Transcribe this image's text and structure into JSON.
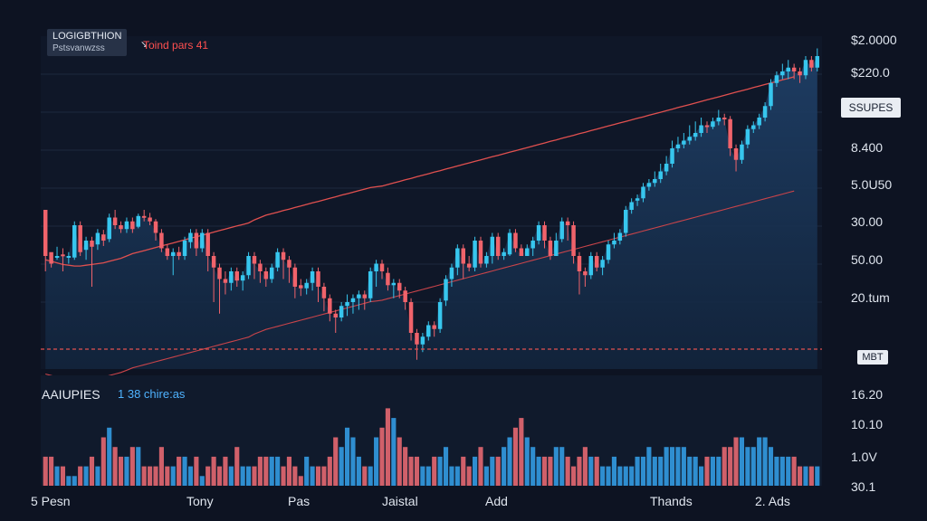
{
  "header": {
    "symbol": "LOGIGBTHION",
    "subtitle": "Pstsvanwzss",
    "trend_label": "Toind pars 41"
  },
  "price_tag": "SSUPES",
  "volume_tag": "MBT",
  "volume_panel": {
    "title": "AAIUPIES",
    "subtitle": "1 38 chire:as"
  },
  "colors": {
    "up": "#37c6ee",
    "down": "#f0636b",
    "background": "#0d1322",
    "ma": "#e0504f",
    "area": "#1e3a5e"
  },
  "chart_data": [
    {
      "type": "candlestick",
      "title": "",
      "y_tick_labels": [
        "$2.0000",
        "$220.0",
        "8.400",
        "5.0U50",
        "30.00",
        "50.00",
        "20.tum"
      ],
      "x_tick_labels": [
        "5 Pesn",
        "Tony",
        "Pas",
        "Jaistal",
        "Add",
        "Thands",
        "2. Ads"
      ],
      "grid": true,
      "dashed_reference_line": true,
      "ohlc": [
        [
          360,
          300,
          345,
          280
        ],
        [
          305,
          290,
          300,
          285
        ],
        [
          300,
          300,
          312,
          295
        ],
        [
          302,
          300,
          310,
          280
        ],
        [
          300,
          300,
          305,
          290
        ],
        [
          298,
          340,
          345,
          295
        ],
        [
          340,
          305,
          345,
          300
        ],
        [
          308,
          320,
          325,
          295
        ],
        [
          320,
          312,
          325,
          260
        ],
        [
          315,
          330,
          335,
          308
        ],
        [
          328,
          320,
          334,
          313
        ],
        [
          322,
          350,
          355,
          318
        ],
        [
          350,
          340,
          360,
          335
        ],
        [
          340,
          335,
          345,
          330
        ],
        [
          335,
          345,
          350,
          330
        ],
        [
          345,
          335,
          350,
          330
        ],
        [
          338,
          352,
          355,
          336
        ],
        [
          352,
          350,
          360,
          345
        ],
        [
          350,
          345,
          356,
          340
        ],
        [
          345,
          330,
          348,
          320
        ],
        [
          330,
          310,
          335,
          305
        ],
        [
          310,
          300,
          315,
          295
        ],
        [
          300,
          305,
          310,
          275
        ],
        [
          305,
          300,
          312,
          295
        ],
        [
          300,
          320,
          325,
          295
        ],
        [
          318,
          330,
          335,
          310
        ],
        [
          330,
          310,
          335,
          300
        ],
        [
          310,
          330,
          335,
          305
        ],
        [
          330,
          300,
          335,
          280
        ],
        [
          300,
          285,
          305,
          240
        ],
        [
          285,
          270,
          290,
          225
        ],
        [
          270,
          265,
          280,
          250
        ],
        [
          265,
          280,
          285,
          255
        ],
        [
          280,
          268,
          285,
          260
        ],
        [
          268,
          275,
          280,
          255
        ],
        [
          275,
          300,
          305,
          270
        ],
        [
          300,
          290,
          305,
          270
        ],
        [
          290,
          280,
          295,
          265
        ],
        [
          280,
          270,
          285,
          260
        ],
        [
          270,
          285,
          290,
          265
        ],
        [
          285,
          305,
          310,
          280
        ],
        [
          305,
          295,
          310,
          270
        ],
        [
          295,
          285,
          300,
          265
        ],
        [
          285,
          260,
          290,
          245
        ],
        [
          262,
          258,
          270,
          248
        ],
        [
          258,
          265,
          270,
          250
        ],
        [
          265,
          280,
          285,
          255
        ],
        [
          280,
          260,
          285,
          240
        ],
        [
          260,
          245,
          265,
          228
        ],
        [
          245,
          225,
          250,
          215
        ],
        [
          225,
          220,
          230,
          200
        ],
        [
          220,
          235,
          240,
          215
        ],
        [
          235,
          240,
          250,
          222
        ],
        [
          240,
          245,
          250,
          225
        ],
        [
          245,
          250,
          255,
          230
        ],
        [
          250,
          245,
          255,
          230
        ],
        [
          245,
          280,
          285,
          240
        ],
        [
          280,
          290,
          295,
          260
        ],
        [
          290,
          280,
          295,
          270
        ],
        [
          278,
          262,
          285,
          255
        ],
        [
          262,
          265,
          270,
          245
        ],
        [
          265,
          255,
          270,
          245
        ],
        [
          255,
          240,
          260,
          230
        ],
        [
          240,
          200,
          245,
          190
        ],
        [
          200,
          185,
          205,
          165
        ],
        [
          185,
          195,
          200,
          175
        ],
        [
          195,
          210,
          215,
          190
        ],
        [
          210,
          205,
          215,
          195
        ],
        [
          205,
          240,
          245,
          200
        ],
        [
          242,
          270,
          275,
          235
        ],
        [
          270,
          285,
          290,
          260
        ],
        [
          285,
          310,
          315,
          275
        ],
        [
          310,
          290,
          315,
          270
        ],
        [
          290,
          285,
          300,
          280
        ],
        [
          285,
          320,
          325,
          280
        ],
        [
          320,
          290,
          325,
          285
        ],
        [
          290,
          300,
          305,
          285
        ],
        [
          300,
          325,
          330,
          290
        ],
        [
          325,
          300,
          330,
          295
        ],
        [
          300,
          305,
          310,
          295
        ],
        [
          302,
          330,
          335,
          300
        ],
        [
          330,
          310,
          335,
          305
        ],
        [
          310,
          300,
          315,
          300
        ],
        [
          300,
          310,
          315,
          305
        ],
        [
          310,
          320,
          325,
          300
        ],
        [
          320,
          340,
          345,
          315
        ],
        [
          340,
          320,
          345,
          310
        ],
        [
          320,
          300,
          325,
          295
        ],
        [
          300,
          320,
          330,
          300
        ],
        [
          322,
          345,
          350,
          318
        ],
        [
          345,
          340,
          350,
          320
        ],
        [
          340,
          300,
          345,
          290
        ],
        [
          300,
          280,
          305,
          250
        ],
        [
          280,
          275,
          285,
          260
        ],
        [
          275,
          300,
          305,
          270
        ],
        [
          300,
          285,
          305,
          280
        ],
        [
          285,
          295,
          300,
          275
        ],
        [
          295,
          315,
          320,
          290
        ],
        [
          315,
          320,
          330,
          310
        ],
        [
          320,
          330,
          335,
          315
        ],
        [
          330,
          360,
          365,
          325
        ],
        [
          360,
          370,
          375,
          355
        ],
        [
          372,
          375,
          380,
          365
        ],
        [
          375,
          390,
          395,
          370
        ],
        [
          390,
          395,
          400,
          385
        ],
        [
          395,
          400,
          410,
          390
        ],
        [
          400,
          410,
          420,
          395
        ],
        [
          410,
          420,
          430,
          405
        ],
        [
          420,
          440,
          450,
          415
        ],
        [
          440,
          445,
          455,
          435
        ],
        [
          445,
          450,
          460,
          440
        ],
        [
          450,
          455,
          470,
          445
        ],
        [
          455,
          460,
          475,
          450
        ],
        [
          460,
          470,
          480,
          455
        ],
        [
          470,
          468,
          475,
          460
        ],
        [
          468,
          475,
          480,
          465
        ],
        [
          475,
          480,
          490,
          470
        ],
        [
          480,
          478,
          485,
          470
        ],
        [
          478,
          440,
          482,
          430
        ],
        [
          440,
          425,
          445,
          410
        ],
        [
          425,
          445,
          450,
          420
        ],
        [
          445,
          465,
          470,
          440
        ],
        [
          465,
          470,
          475,
          460
        ],
        [
          470,
          480,
          485,
          465
        ],
        [
          480,
          495,
          500,
          475
        ],
        [
          495,
          525,
          530,
          490
        ],
        [
          525,
          535,
          540,
          520
        ],
        [
          535,
          540,
          550,
          530
        ],
        [
          540,
          545,
          555,
          530
        ],
        [
          545,
          540,
          550,
          530
        ],
        [
          540,
          535,
          545,
          525
        ],
        [
          535,
          555,
          560,
          530
        ],
        [
          555,
          545,
          560,
          540
        ],
        [
          545,
          560,
          570,
          540
        ]
      ],
      "moving_average": [
        320,
        318,
        316,
        314,
        313,
        312,
        312,
        313,
        314,
        315,
        316,
        318,
        320,
        322,
        325,
        328,
        330,
        332,
        334,
        336,
        338,
        340,
        342,
        344,
        346,
        348,
        350,
        352,
        354,
        356,
        358,
        360,
        362,
        364,
        366,
        368,
        372,
        375,
        378,
        380,
        382,
        384,
        386,
        388,
        390,
        392,
        394,
        396,
        398,
        400,
        402,
        404,
        406,
        408,
        410,
        412,
        414,
        415,
        416,
        418,
        420,
        422,
        424,
        426,
        428,
        430,
        432,
        434,
        436,
        438,
        440,
        442,
        444,
        446,
        448,
        450,
        452,
        454,
        456,
        458,
        460,
        462,
        464,
        466,
        468,
        470,
        472,
        474,
        476,
        478,
        480,
        482,
        484,
        486,
        488,
        490,
        492,
        494,
        496,
        498,
        500,
        502,
        504,
        506,
        508,
        510,
        512,
        514,
        516,
        518,
        520,
        522,
        524,
        526,
        528,
        530,
        532,
        534,
        536,
        538,
        540,
        542,
        544,
        546,
        548,
        550,
        552,
        554,
        556,
        558
      ]
    },
    {
      "type": "bar",
      "title": "AAIUPIES",
      "y_tick_labels": [
        "16.20",
        "10.10",
        "1.0V",
        "30.1"
      ],
      "values": [
        3,
        3,
        2,
        2,
        1,
        1,
        2,
        2,
        3,
        2,
        5,
        6,
        4,
        3,
        3,
        4,
        4,
        2,
        2,
        2,
        4,
        2,
        2,
        3,
        3,
        2,
        3,
        1,
        2,
        3,
        2,
        3,
        2,
        4,
        2,
        2,
        2,
        3,
        3,
        3,
        3,
        2,
        3,
        2,
        1,
        3,
        2,
        2,
        2,
        3,
        5,
        4,
        6,
        5,
        3,
        2,
        2,
        5,
        6,
        8,
        7,
        5,
        4,
        3,
        3,
        2,
        2,
        3,
        3,
        4,
        2,
        2,
        3,
        2,
        3,
        4,
        2,
        3,
        3,
        4,
        5,
        6,
        7,
        5,
        4,
        3,
        3,
        3,
        4,
        4,
        3,
        2,
        3,
        4,
        3,
        3,
        2,
        2,
        3,
        2,
        2,
        2,
        3,
        3,
        4,
        3,
        3,
        4,
        4,
        4,
        4,
        3,
        3,
        2,
        3,
        3,
        3,
        4,
        4,
        5,
        5,
        4,
        4,
        5,
        5,
        4,
        3,
        3,
        3,
        3,
        2,
        2,
        2,
        2
      ],
      "colors": "mixed_up_down"
    }
  ]
}
